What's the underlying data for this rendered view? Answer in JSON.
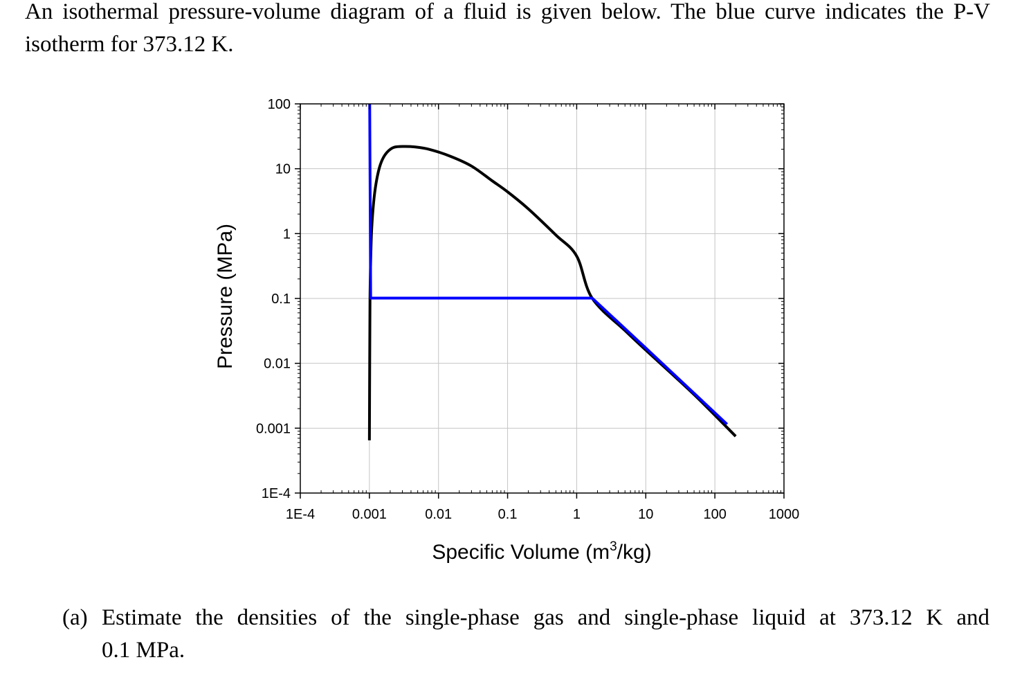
{
  "intro_text": "An isothermal pressure-volume diagram of a fluid is given below. The blue curve indicates the P-V isotherm for 373.12 K.",
  "question": {
    "label": "(a)",
    "line1": "Estimate the densities of the single-phase gas and single-phase liquid at 373.12 K and",
    "line2": "0.1 MPa."
  },
  "chart_data": {
    "type": "line",
    "xscale": "log",
    "yscale": "log",
    "xlim": [
      0.0001,
      1000
    ],
    "ylim": [
      0.0001,
      100
    ],
    "xlabel_main": "Specific Volume (m",
    "xlabel_sup": "3",
    "xlabel_tail": "/kg)",
    "ylabel": "Pressure (MPa)",
    "grid": true,
    "xticks": [
      {
        "value": 0.0001,
        "label": "1E-4"
      },
      {
        "value": 0.001,
        "label": "0.001"
      },
      {
        "value": 0.01,
        "label": "0.01"
      },
      {
        "value": 0.1,
        "label": "0.1"
      },
      {
        "value": 1,
        "label": "1"
      },
      {
        "value": 10,
        "label": "10"
      },
      {
        "value": 100,
        "label": "100"
      },
      {
        "value": 1000,
        "label": "1000"
      }
    ],
    "yticks": [
      {
        "value": 0.0001,
        "label": "1E-4"
      },
      {
        "value": 0.001,
        "label": "0.001"
      },
      {
        "value": 0.01,
        "label": "0.01"
      },
      {
        "value": 0.1,
        "label": "0.1"
      },
      {
        "value": 1,
        "label": "1"
      },
      {
        "value": 10,
        "label": "10"
      },
      {
        "value": 100,
        "label": "100"
      }
    ],
    "series": [
      {
        "color": "#000000",
        "points": [
          [
            0.001,
            0.00065
          ],
          [
            0.00101,
            0.01
          ],
          [
            0.00102,
            0.1
          ],
          [
            0.00105,
            0.5
          ],
          [
            0.00108,
            1.2
          ],
          [
            0.00115,
            3.0
          ],
          [
            0.00125,
            6.0
          ],
          [
            0.0014,
            10.5
          ],
          [
            0.0016,
            15.0
          ],
          [
            0.0019,
            19.0
          ],
          [
            0.0023,
            21.5
          ],
          [
            0.0031,
            22.06
          ],
          [
            0.0045,
            21.7
          ],
          [
            0.0075,
            19.8
          ],
          [
            0.015,
            15.5
          ],
          [
            0.03,
            11.0
          ],
          [
            0.06,
            6.5
          ],
          [
            0.1,
            4.4
          ],
          [
            0.2,
            2.4
          ],
          [
            0.5,
            0.95
          ],
          [
            1.0,
            0.45
          ],
          [
            1.67,
            0.1013
          ],
          [
            5,
            0.032
          ],
          [
            10,
            0.016
          ],
          [
            50,
            0.0033
          ],
          [
            200,
            0.00075
          ]
        ]
      },
      {
        "color": "#0000ff",
        "points": [
          [
            0.00101,
            100
          ],
          [
            0.001043,
            0.1013
          ],
          [
            1.673,
            0.1013
          ],
          [
            10,
            0.0172
          ],
          [
            150,
            0.00115
          ]
        ]
      }
    ]
  }
}
